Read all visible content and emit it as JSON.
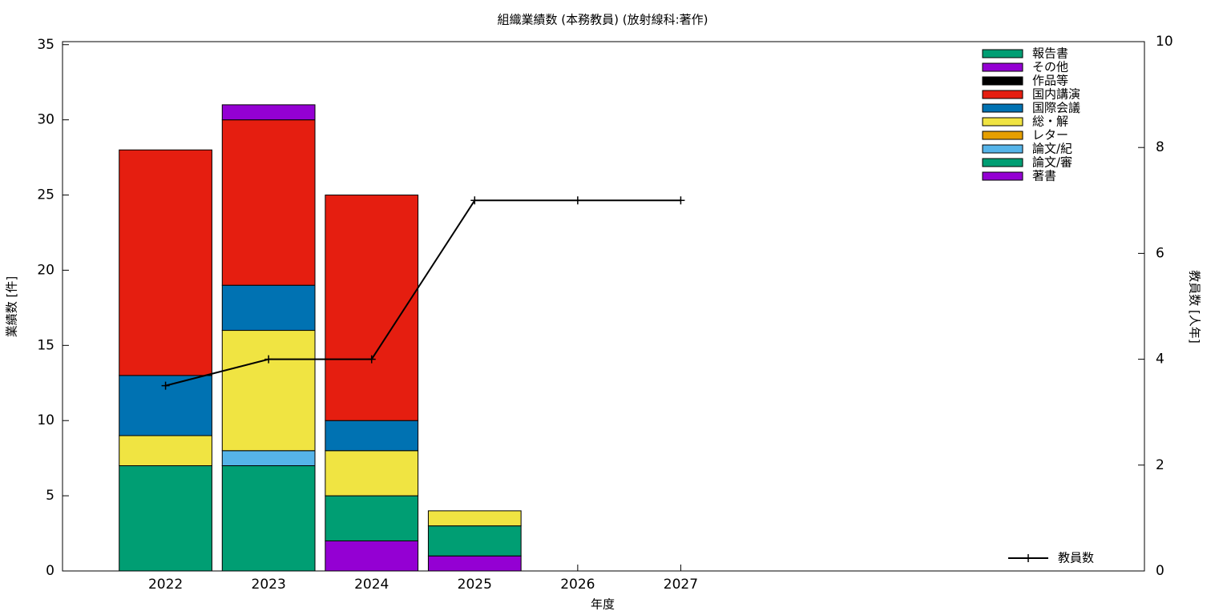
{
  "chart_data": {
    "type": "bar",
    "stacked": true,
    "title": "組織業績数 (本務教員) (放射線科:著作)",
    "xlabel": "年度",
    "ylabel": "業績数 [件]",
    "y2label": "教員数 [人年]",
    "x": [
      2022,
      2023,
      2024,
      2025,
      2026,
      2027
    ],
    "xlim": [
      2021,
      2031.5
    ],
    "xticks": [
      2022,
      2023,
      2024,
      2025,
      2026,
      2027
    ],
    "ylim": [
      0,
      35.2
    ],
    "yticks": [
      0,
      5,
      10,
      15,
      20,
      25,
      30,
      35
    ],
    "y2lim": [
      0,
      10
    ],
    "y2ticks": [
      0,
      2,
      4,
      6,
      8,
      10
    ],
    "series": [
      {
        "name": "著書",
        "color": "#9400d3",
        "values": [
          0,
          0,
          2,
          1,
          0,
          0
        ]
      },
      {
        "name": "論文/審",
        "color": "#009e73",
        "values": [
          7,
          7,
          3,
          2,
          0,
          0
        ]
      },
      {
        "name": "論文/紀",
        "color": "#56b4e9",
        "values": [
          0,
          1,
          0,
          0,
          0,
          0
        ]
      },
      {
        "name": "レター",
        "color": "#e69f00",
        "values": [
          0,
          0,
          0,
          0,
          0,
          0
        ]
      },
      {
        "name": "総・解",
        "color": "#f0e442",
        "values": [
          2,
          8,
          3,
          1,
          0,
          0
        ]
      },
      {
        "name": "国際会議",
        "color": "#0072b2",
        "values": [
          4,
          3,
          2,
          0,
          0,
          0
        ]
      },
      {
        "name": "国内講演",
        "color": "#e51e10",
        "values": [
          15,
          11,
          15,
          0,
          0,
          0
        ]
      },
      {
        "name": "作品等",
        "color": "#000000",
        "values": [
          0,
          0,
          0,
          0,
          0,
          0
        ]
      },
      {
        "name": "その他",
        "color": "#9400d3",
        "values": [
          0,
          1,
          0,
          0,
          0,
          0
        ]
      },
      {
        "name": "報告書",
        "color": "#009e73",
        "values": [
          0,
          0,
          0,
          0,
          0,
          0
        ]
      },
      {
        "name": "教員数",
        "color": "#000000",
        "type": "line",
        "axis": "y2",
        "values": [
          3.5,
          4,
          4,
          7,
          7,
          7
        ]
      }
    ]
  }
}
